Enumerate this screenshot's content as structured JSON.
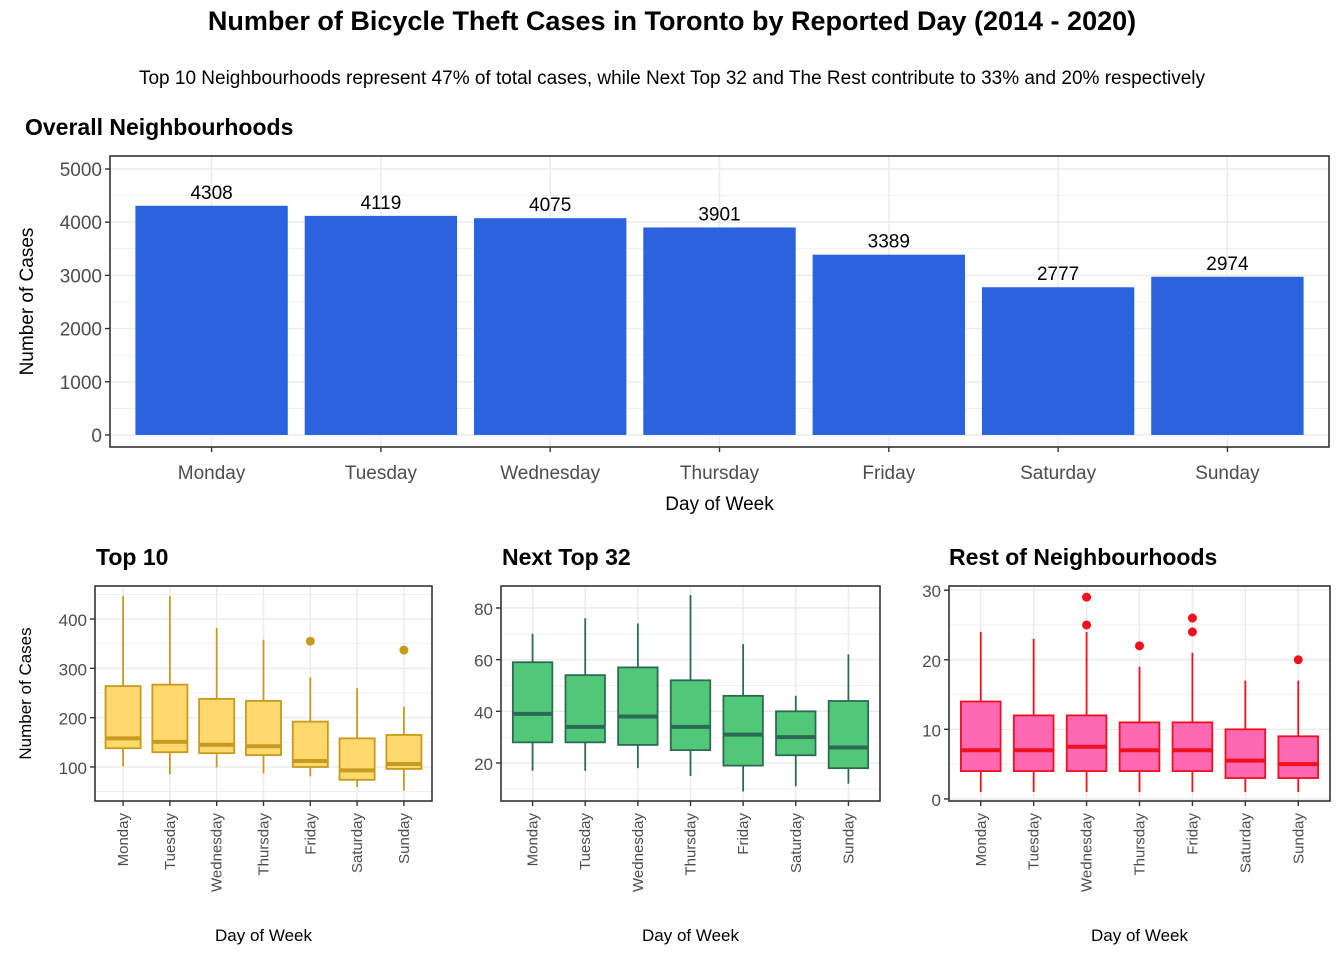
{
  "title": "Number of Bicycle Theft Cases in Toronto by Reported Day (2014 - 2020)",
  "subtitle": "Top 10 Neighbourhoods represent 47% of total cases, while Next Top 32 and The Rest contribute to 33% and 20% respectively",
  "chart_data": [
    {
      "id": "overall",
      "type": "bar",
      "title": "Overall Neighbourhoods",
      "xlabel": "Day of Week",
      "ylabel": "Number of Cases",
      "categories": [
        "Monday",
        "Tuesday",
        "Wednesday",
        "Thursday",
        "Friday",
        "Saturday",
        "Sunday"
      ],
      "values": [
        4308,
        4119,
        4075,
        3901,
        3389,
        2777,
        2974
      ],
      "data_labels": [
        "4308",
        "4119",
        "4075",
        "3901",
        "3389",
        "2777",
        "2974"
      ],
      "yticks": [
        0,
        1000,
        2000,
        3000,
        4000,
        5000
      ],
      "ylim": [
        -226,
        5244
      ],
      "grid": true,
      "color": "#2B62DE"
    },
    {
      "id": "top10",
      "type": "boxplot",
      "title": "Top 10",
      "xlabel": "Day of Week",
      "ylabel": "Number of Cases",
      "categories": [
        "Monday",
        "Tuesday",
        "Wednesday",
        "Thursday",
        "Friday",
        "Saturday",
        "Sunday"
      ],
      "boxes": [
        {
          "min": 101,
          "q1": 138,
          "median": 158,
          "q3": 264,
          "max": 447,
          "outliers": []
        },
        {
          "min": 85,
          "q1": 130,
          "median": 151,
          "q3": 267,
          "max": 446,
          "outliers": []
        },
        {
          "min": 99,
          "q1": 128,
          "median": 145,
          "q3": 238,
          "max": 382,
          "outliers": []
        },
        {
          "min": 87,
          "q1": 124,
          "median": 142,
          "q3": 234,
          "max": 358,
          "outliers": []
        },
        {
          "min": 81,
          "q1": 100,
          "median": 112,
          "q3": 192,
          "max": 282,
          "outliers": [
            355
          ]
        },
        {
          "min": 59,
          "q1": 74,
          "median": 93,
          "q3": 158,
          "max": 260,
          "outliers": []
        },
        {
          "min": 52,
          "q1": 96,
          "median": 106,
          "q3": 165,
          "max": 222,
          "outliers": [
            337
          ]
        }
      ],
      "yticks": [
        100,
        200,
        300,
        400
      ],
      "ylim": [
        31,
        467
      ],
      "grid": true,
      "fill": "#FFD96E",
      "stroke": "#C89A1E"
    },
    {
      "id": "next32",
      "type": "boxplot",
      "title": "Next Top 32",
      "xlabel": "Day of Week",
      "ylabel": "",
      "categories": [
        "Monday",
        "Tuesday",
        "Wednesday",
        "Thursday",
        "Friday",
        "Saturday",
        "Sunday"
      ],
      "boxes": [
        {
          "min": 17,
          "q1": 28,
          "median": 39,
          "q3": 59,
          "max": 70,
          "outliers": []
        },
        {
          "min": 17,
          "q1": 28,
          "median": 34,
          "q3": 54,
          "max": 76,
          "outliers": []
        },
        {
          "min": 18,
          "q1": 27,
          "median": 38,
          "q3": 57,
          "max": 74,
          "outliers": []
        },
        {
          "min": 15,
          "q1": 25,
          "median": 34,
          "q3": 52,
          "max": 85,
          "outliers": []
        },
        {
          "min": 9,
          "q1": 19,
          "median": 31,
          "q3": 46,
          "max": 66,
          "outliers": []
        },
        {
          "min": 11,
          "q1": 23,
          "median": 30,
          "q3": 40,
          "max": 46,
          "outliers": []
        },
        {
          "min": 12,
          "q1": 18,
          "median": 26,
          "q3": 44,
          "max": 62,
          "outliers": []
        }
      ],
      "yticks": [
        20,
        40,
        60,
        80
      ],
      "ylim": [
        5.3,
        88.5
      ],
      "grid": true,
      "fill": "#50C878",
      "stroke": "#2D6A55"
    },
    {
      "id": "rest",
      "type": "boxplot",
      "title": "Rest of Neighbourhoods",
      "xlabel": "Day of Week",
      "ylabel": "",
      "categories": [
        "Monday",
        "Tuesday",
        "Wednesday",
        "Thursday",
        "Friday",
        "Saturday",
        "Sunday"
      ],
      "boxes": [
        {
          "min": 1,
          "q1": 4,
          "median": 7,
          "q3": 14,
          "max": 24,
          "outliers": []
        },
        {
          "min": 1,
          "q1": 4,
          "median": 7,
          "q3": 12,
          "max": 23,
          "outliers": []
        },
        {
          "min": 1,
          "q1": 4,
          "median": 7.5,
          "q3": 12,
          "max": 24,
          "outliers": [
            25,
            29
          ]
        },
        {
          "min": 1,
          "q1": 4,
          "median": 7,
          "q3": 11,
          "max": 19,
          "outliers": [
            22
          ]
        },
        {
          "min": 1,
          "q1": 4,
          "median": 7,
          "q3": 11,
          "max": 21,
          "outliers": [
            24,
            26
          ]
        },
        {
          "min": 1,
          "q1": 3,
          "median": 5.5,
          "q3": 10,
          "max": 17,
          "outliers": []
        },
        {
          "min": 1,
          "q1": 3,
          "median": 5,
          "q3": 9,
          "max": 17,
          "outliers": [
            20
          ]
        }
      ],
      "yticks": [
        0,
        10,
        20,
        30
      ],
      "ylim": [
        -0.3,
        30.6
      ],
      "grid": true,
      "fill": "#FF69B4",
      "stroke": "#F0101E"
    }
  ]
}
